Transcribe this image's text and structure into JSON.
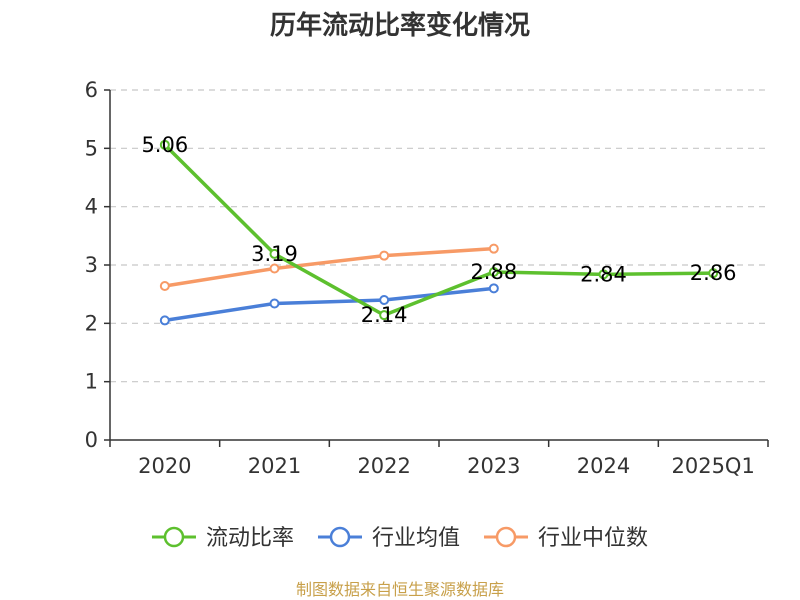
{
  "chart_data": {
    "type": "line",
    "title": "历年流动比率变化情况",
    "categories": [
      "2020",
      "2021",
      "2022",
      "2023",
      "2024",
      "2025Q1"
    ],
    "ylim": [
      0,
      6
    ],
    "yticks": [
      "0",
      "1",
      "2",
      "3",
      "4",
      "5",
      "6"
    ],
    "grid": true,
    "legend_position": "bottom",
    "series": [
      {
        "name": "流动比率",
        "color": "#5dc02e",
        "values": [
          5.06,
          3.19,
          2.14,
          2.88,
          2.84,
          2.86
        ],
        "labels": [
          "5.06",
          "3.19",
          "2.14",
          "2.88",
          "2.84",
          "2.86"
        ]
      },
      {
        "name": "行业均值",
        "color": "#4a7fd8",
        "values": [
          2.05,
          2.34,
          2.4,
          2.6,
          null,
          null
        ]
      },
      {
        "name": "行业中位数",
        "color": "#f79a66",
        "values": [
          2.64,
          2.94,
          3.16,
          3.28,
          null,
          null
        ]
      }
    ],
    "source": "制图数据来自恒生聚源数据库"
  }
}
